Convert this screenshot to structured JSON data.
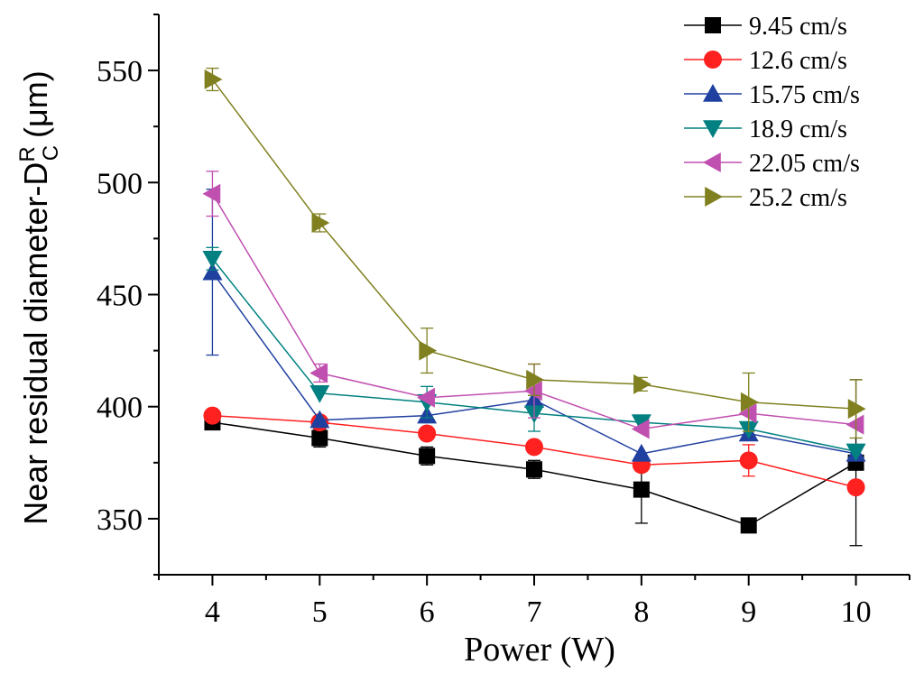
{
  "chart_data": {
    "type": "line",
    "title": "",
    "xlabel": "Power (W)",
    "ylabel": {
      "main": "Near residual diameter-D",
      "subscript": "C",
      "superscript": "R",
      "unit": "(μm)"
    },
    "xlim": [
      3.5,
      10.5
    ],
    "ylim": [
      325,
      575
    ],
    "xticks": [
      4,
      5,
      6,
      7,
      8,
      9,
      10
    ],
    "xtick_labels": [
      "4",
      "5",
      "6",
      "7",
      "8",
      "9",
      "10"
    ],
    "yticks": [
      350,
      400,
      450,
      500,
      550
    ],
    "ytick_labels": [
      "350",
      "400",
      "450",
      "500",
      "550"
    ],
    "grid": false,
    "legend_position": "top-right",
    "x": [
      4,
      5,
      6,
      7,
      8,
      9,
      10
    ],
    "series": [
      {
        "name": "9.45 cm/s",
        "color": "#000000",
        "marker": "square",
        "values": [
          393,
          386,
          378,
          372,
          363,
          347,
          375
        ],
        "errors": [
          3,
          4,
          4,
          4,
          15,
          3,
          37
        ]
      },
      {
        "name": "12.6 cm/s",
        "color": "#ff2020",
        "marker": "circle",
        "values": [
          396,
          393,
          388,
          382,
          374,
          376,
          364
        ],
        "errors": [
          0,
          0,
          0,
          0,
          0,
          7,
          0
        ]
      },
      {
        "name": "15.75 cm/s",
        "color": "#2040a0",
        "marker": "triangle-up",
        "values": [
          460,
          394,
          396,
          403,
          379,
          388,
          379
        ],
        "errors": [
          37,
          0,
          0,
          0,
          0,
          0,
          0
        ]
      },
      {
        "name": "18.9 cm/s",
        "color": "#008080",
        "marker": "triangle-down",
        "values": [
          466,
          406,
          402,
          397,
          393,
          390,
          380
        ],
        "errors": [
          5,
          0,
          7,
          8,
          3,
          0,
          0
        ]
      },
      {
        "name": "22.05 cm/s",
        "color": "#c050b0",
        "marker": "triangle-left",
        "values": [
          495,
          415,
          404,
          407,
          390,
          397,
          392
        ],
        "errors": [
          10,
          4,
          0,
          12,
          0,
          0,
          0
        ]
      },
      {
        "name": "25.2 cm/s",
        "color": "#808020",
        "marker": "triangle-right",
        "values": [
          546,
          482,
          425,
          412,
          410,
          402,
          399
        ],
        "errors": [
          5,
          4,
          10,
          7,
          3,
          13,
          13
        ]
      }
    ]
  }
}
